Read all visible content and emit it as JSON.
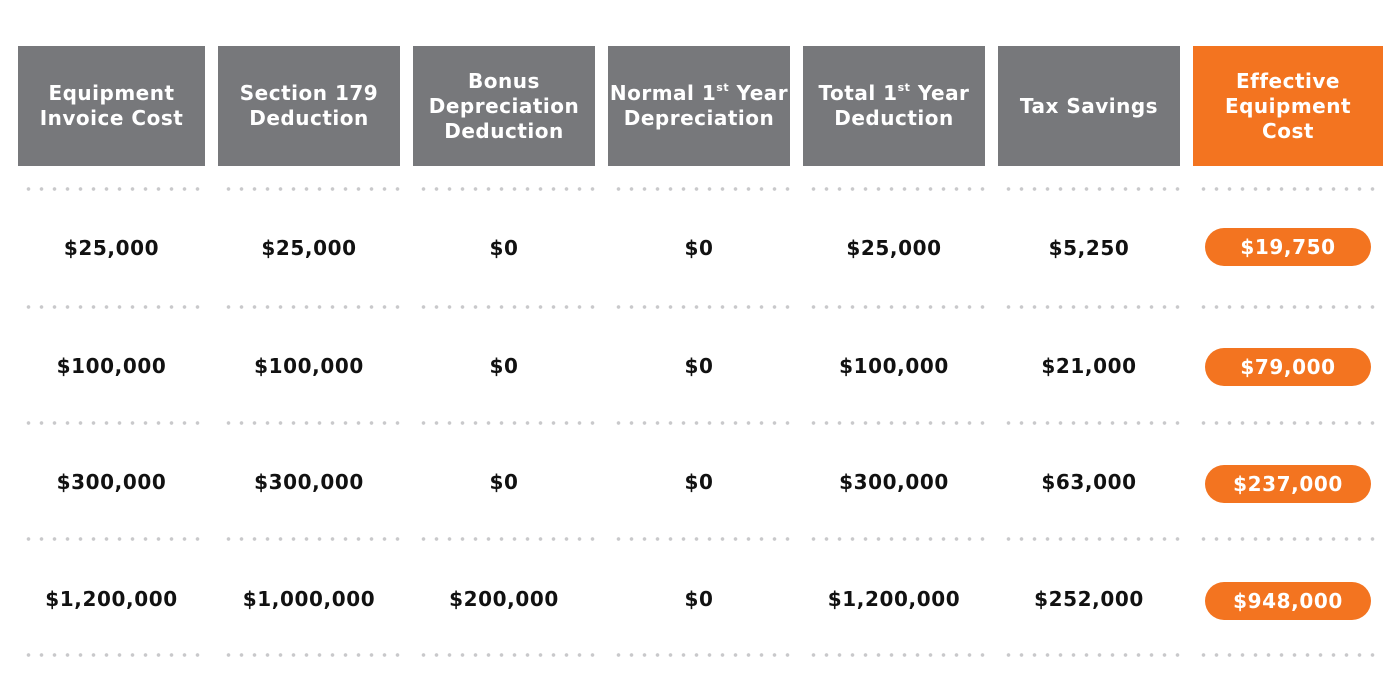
{
  "headers": {
    "c1": {
      "l1": "Equipment",
      "l2": "Invoice Cost"
    },
    "c2": {
      "l1": "Section 179",
      "l2": "Deduction"
    },
    "c3": {
      "l1": "Bonus",
      "l2": "Depreciation",
      "l3": "Deduction"
    },
    "c4": {
      "l1a": "Normal 1",
      "sup": "st",
      "l1b": " Year",
      "l2": "Depreciation"
    },
    "c5": {
      "l1a": "Total 1",
      "sup": "st",
      "l1b": " Year",
      "l2": "Deduction"
    },
    "c6": {
      "l1": "Tax Savings"
    },
    "c7": {
      "l1": "Effective",
      "l2": "Equipment",
      "l3": "Cost"
    }
  },
  "rows": [
    [
      "$25,000",
      "$25,000",
      "$0",
      "$0",
      "$25,000",
      "$5,250",
      "$19,750"
    ],
    [
      "$100,000",
      "$100,000",
      "$0",
      "$0",
      "$100,000",
      "$21,000",
      "$79,000"
    ],
    [
      "$300,000",
      "$300,000",
      "$0",
      "$0",
      "$300,000",
      "$63,000",
      "$237,000"
    ],
    [
      "$1,200,000",
      "$1,000,000",
      "$200,000",
      "$0",
      "$1,200,000",
      "$252,000",
      "$948,000"
    ]
  ],
  "colors": {
    "header_gray": "#77787b",
    "accent_orange": "#f37420",
    "dot_gray": "#c9c9cb"
  }
}
